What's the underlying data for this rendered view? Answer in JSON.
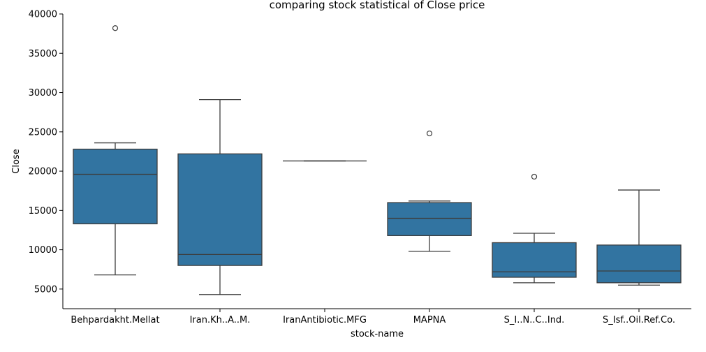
{
  "chart_data": {
    "type": "box",
    "title": "comparing stock statistical of Close price",
    "xlabel": "stock-name",
    "ylabel": "Close",
    "ylim": [
      2500,
      40000
    ],
    "yticks": [
      5000,
      10000,
      15000,
      20000,
      25000,
      30000,
      35000,
      40000
    ],
    "box_color": "#3274a1",
    "line_color": "#3d3d3d",
    "categories": [
      "Behpardakht.Mellat",
      "Iran.Kh..A..M.",
      "IranAntibiotic.MFG",
      "MAPNA",
      "S_I..N..C..Ind.",
      "S_Isf..Oil.Ref.Co."
    ],
    "boxes": [
      {
        "whisker_low": 6800,
        "q1": 13300,
        "median": 19600,
        "q3": 22800,
        "whisker_high": 23600,
        "outliers": [
          38200
        ]
      },
      {
        "whisker_low": 4300,
        "q1": 8000,
        "median": 9400,
        "q3": 22200,
        "whisker_high": 29100,
        "outliers": []
      },
      {
        "whisker_low": 21300,
        "q1": 21300,
        "median": 21300,
        "q3": 21300,
        "whisker_high": 21300,
        "outliers": []
      },
      {
        "whisker_low": 9800,
        "q1": 11800,
        "median": 14000,
        "q3": 16000,
        "whisker_high": 16200,
        "outliers": [
          24800
        ]
      },
      {
        "whisker_low": 5800,
        "q1": 6500,
        "median": 7200,
        "q3": 10900,
        "whisker_high": 12100,
        "outliers": [
          19300
        ]
      },
      {
        "whisker_low": 5500,
        "q1": 5800,
        "median": 7300,
        "q3": 10600,
        "whisker_high": 17600,
        "outliers": []
      }
    ]
  }
}
